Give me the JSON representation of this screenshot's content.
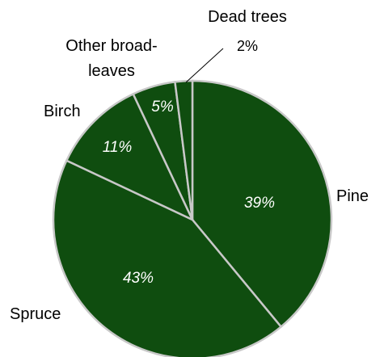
{
  "chart_data": {
    "type": "pie",
    "title": "",
    "slices": [
      {
        "label": "Pine",
        "value": 39,
        "value_label": "39%",
        "color": "#0f4d0f"
      },
      {
        "label": "Spruce",
        "value": 43,
        "value_label": "43%",
        "color": "#0f4d0f"
      },
      {
        "label": "Birch",
        "value": 11,
        "value_label": "11%",
        "color": "#0f4d0f"
      },
      {
        "label": "Other broad-leaves",
        "label_lines": [
          "Other broad-",
          "leaves"
        ],
        "value": 5,
        "value_label": "5%",
        "color": "#0f4d0f"
      },
      {
        "label": "Dead trees",
        "value": 2,
        "value_label": "2%",
        "color": "#0f4d0f"
      }
    ],
    "start": "12 o'clock",
    "direction": "clockwise",
    "separator_color": "#c8c8c8",
    "legend": "none"
  }
}
